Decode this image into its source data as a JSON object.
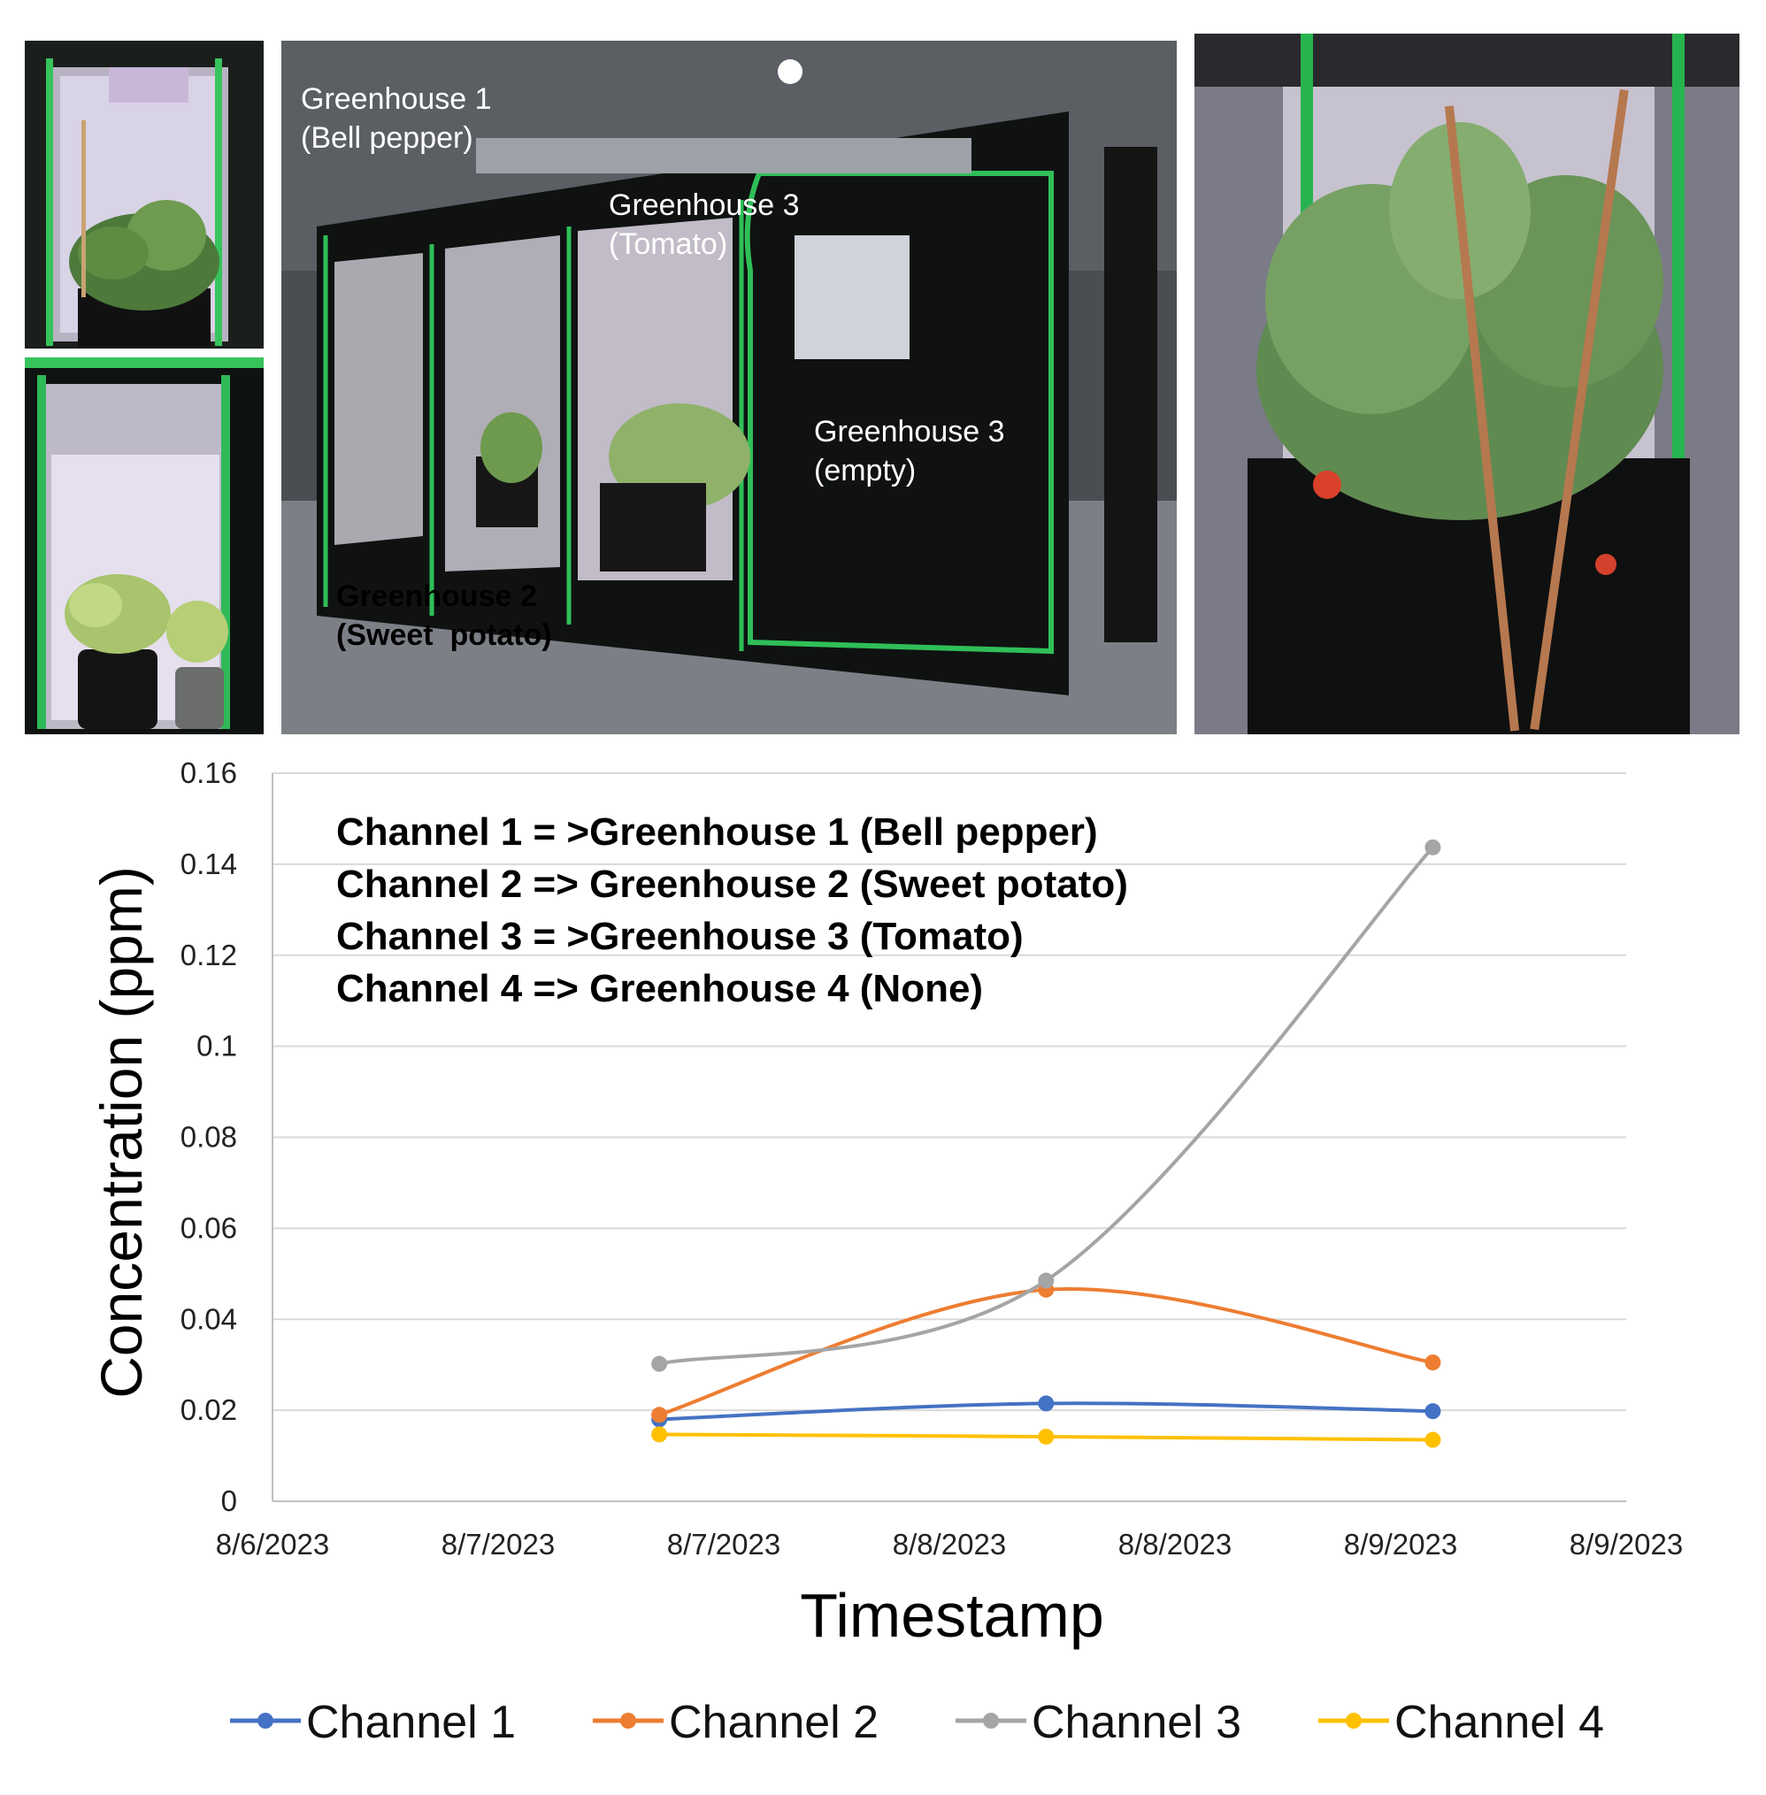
{
  "photos": {
    "left_top": {
      "icon": "bell-pepper-tent-photo"
    },
    "left_bottom": {
      "icon": "sweet-potato-tent-photo"
    },
    "center": {
      "icon": "greenhouse-row-photo",
      "labels": {
        "gh1": "Greenhouse 1\n(Bell pepper)",
        "gh3_tomato": "Greenhouse 3\n(Tomato)",
        "gh3_empty": "Greenhouse 3\n(empty)",
        "gh2": "Greenhouse 2\n(Sweet  potato)"
      }
    },
    "right": {
      "icon": "tomato-tent-photo"
    }
  },
  "chart_data": {
    "type": "line",
    "title": "",
    "xlabel": "Timestamp",
    "ylabel": "Concentration (ppm)",
    "ylim": [
      0,
      0.16
    ],
    "yticks": [
      "0",
      "0.02",
      "0.04",
      "0.06",
      "0.08",
      "0.1",
      "0.12",
      "0.14",
      "0.16"
    ],
    "xlim": [
      "8/6/2023 00:00",
      "8/9/2023 12:00"
    ],
    "xticks": [
      "8/6/2023",
      "8/7/2023",
      "8/7/2023",
      "8/8/2023",
      "8/8/2023",
      "8/9/2023",
      "8/9/2023"
    ],
    "x": [
      "8/7/2023 00:00",
      "8/8/2023 00:00",
      "8/9/2023 00:00"
    ],
    "grid": true,
    "legend_position": "bottom",
    "annotations": [
      "Channel 1 = >Greenhouse 1 (Bell pepper)",
      "Channel 2 => Greenhouse 2 (Sweet potato)",
      "Channel 3 = >Greenhouse 3 (Tomato)",
      "Channel 4 => Greenhouse 4 (None)"
    ],
    "series": [
      {
        "name": "Channel 1",
        "color": "#4472C4",
        "values": [
          0.018,
          0.0215,
          0.0198
        ]
      },
      {
        "name": "Channel 2",
        "color": "#ED7D31",
        "values": [
          0.019,
          0.0465,
          0.0305
        ]
      },
      {
        "name": "Channel 3",
        "color": "#A5A5A5",
        "values": [
          0.0302,
          0.0485,
          0.1437
        ]
      },
      {
        "name": "Channel 4",
        "color": "#FFC000",
        "values": [
          0.0147,
          0.0142,
          0.0135
        ]
      }
    ]
  }
}
